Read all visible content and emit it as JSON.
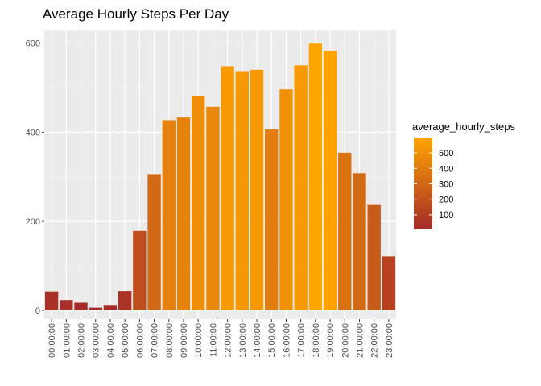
{
  "chart_data": {
    "type": "bar",
    "title": "Average Hourly Steps Per Day",
    "xlabel": "",
    "ylabel": "",
    "categories": [
      "00:00:00",
      "01:00:00",
      "02:00:00",
      "03:00:00",
      "04:00:00",
      "05:00:00",
      "06:00:00",
      "07:00:00",
      "08:00:00",
      "09:00:00",
      "10:00:00",
      "11:00:00",
      "12:00:00",
      "13:00:00",
      "14:00:00",
      "15:00:00",
      "16:00:00",
      "17:00:00",
      "18:00:00",
      "19:00:00",
      "20:00:00",
      "21:00:00",
      "22:00:00",
      "23:00:00"
    ],
    "values": [
      42,
      23,
      17,
      6,
      12,
      43,
      179,
      306,
      427,
      433,
      481,
      457,
      548,
      537,
      540,
      406,
      496,
      550,
      599,
      583,
      354,
      308,
      237,
      122
    ],
    "ylim": [
      -20,
      630
    ],
    "yticks": [
      0,
      200,
      400,
      600
    ],
    "grid": true,
    "legend": {
      "title": "average_hourly_steps",
      "position": "right",
      "labels": [
        "500",
        "400",
        "300",
        "200",
        "100"
      ],
      "breaks": [
        500,
        400,
        300,
        200,
        100
      ],
      "range": [
        6,
        599
      ],
      "color_low": "#a52a2a",
      "color_high": "#ffa500"
    },
    "colors": {
      "panel_bg": "#ebebeb",
      "grid_major": "#ffffff",
      "grid_minor": "#f5f5f5"
    }
  }
}
